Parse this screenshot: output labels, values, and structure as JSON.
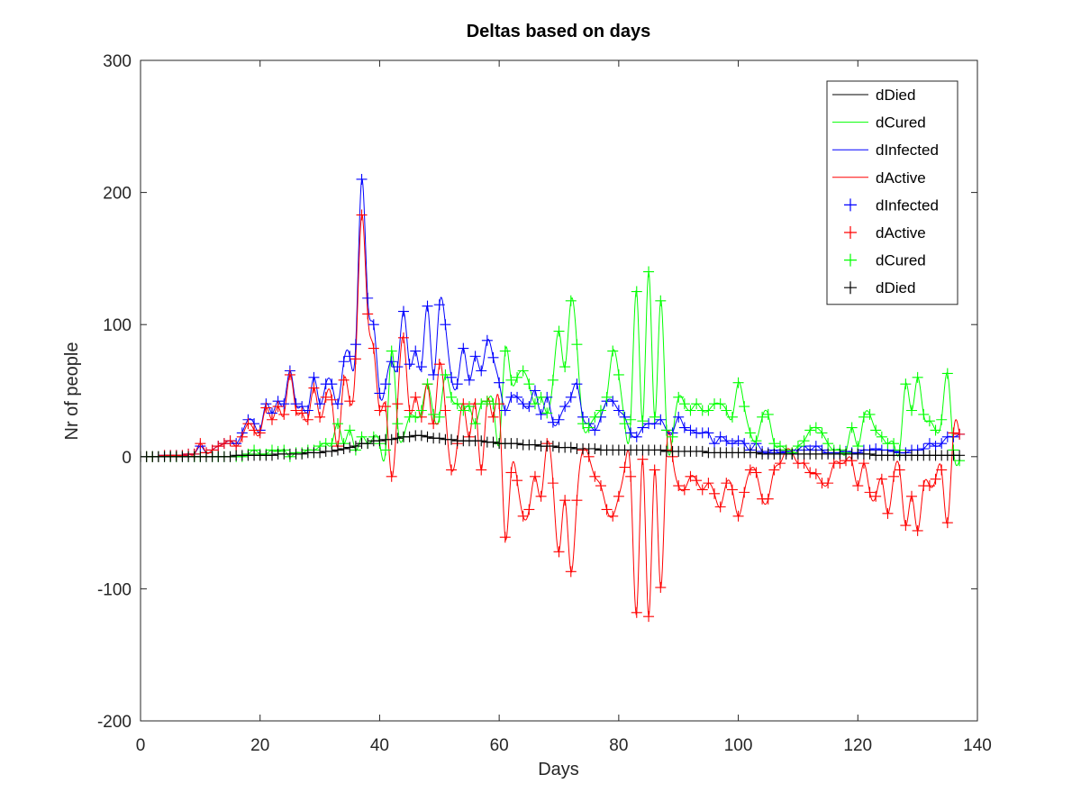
{
  "chart_data": {
    "type": "line",
    "title": "Deltas based on days",
    "xlabel": "Days",
    "ylabel": "Nr of people",
    "xlim": [
      0,
      140
    ],
    "ylim": [
      -200,
      300
    ],
    "xticks": [
      0,
      20,
      40,
      60,
      80,
      100,
      120,
      140
    ],
    "yticks": [
      -200,
      -100,
      0,
      100,
      200,
      300
    ],
    "grid": false,
    "legend_position": "top-right",
    "legend": [
      {
        "label": "dDied",
        "style": "line",
        "color": "#000000"
      },
      {
        "label": "dCured",
        "style": "line",
        "color": "#00ff00"
      },
      {
        "label": "dInfected",
        "style": "line",
        "color": "#0000ff"
      },
      {
        "label": "dActive",
        "style": "line",
        "color": "#ff0000"
      },
      {
        "label": "dInfected",
        "style": "marker",
        "color": "#0000ff"
      },
      {
        "label": "dActive",
        "style": "marker",
        "color": "#ff0000"
      },
      {
        "label": "dCured",
        "style": "marker",
        "color": "#00ff00"
      },
      {
        "label": "dDied",
        "style": "marker",
        "color": "#000000"
      }
    ],
    "x": [
      0,
      1,
      2,
      3,
      4,
      5,
      6,
      7,
      8,
      9,
      10,
      11,
      12,
      13,
      14,
      15,
      16,
      17,
      18,
      19,
      20,
      21,
      22,
      23,
      24,
      25,
      26,
      27,
      28,
      29,
      30,
      31,
      32,
      33,
      34,
      35,
      36,
      37,
      38,
      39,
      40,
      41,
      42,
      43,
      44,
      45,
      46,
      47,
      48,
      49,
      50,
      51,
      52,
      53,
      54,
      55,
      56,
      57,
      58,
      59,
      60,
      61,
      62,
      63,
      64,
      65,
      66,
      67,
      68,
      69,
      70,
      71,
      72,
      73,
      74,
      75,
      76,
      77,
      78,
      79,
      80,
      81,
      82,
      83,
      84,
      85,
      86,
      87,
      88,
      89,
      90,
      91,
      92,
      93,
      94,
      95,
      96,
      97,
      98,
      99,
      100,
      101,
      102,
      103,
      104,
      105,
      106,
      107,
      108,
      109,
      110,
      111,
      112,
      113,
      114,
      115,
      116,
      117,
      118,
      119,
      120,
      121,
      122,
      123,
      124,
      125,
      126,
      127,
      128,
      129,
      130,
      131,
      132,
      133,
      134,
      135,
      136,
      137
    ],
    "series": [
      {
        "name": "dInfected",
        "color": "#0000ff",
        "values": [
          0,
          0,
          0,
          0,
          1,
          1,
          1,
          1,
          2,
          2,
          8,
          3,
          5,
          8,
          10,
          12,
          10,
          18,
          28,
          25,
          20,
          40,
          33,
          42,
          40,
          65,
          40,
          38,
          35,
          60,
          40,
          55,
          55,
          40,
          72,
          76,
          85,
          210,
          120,
          100,
          48,
          55,
          72,
          68,
          110,
          70,
          80,
          68,
          114,
          62,
          115,
          100,
          60,
          55,
          82,
          58,
          76,
          65,
          88,
          75,
          56,
          35,
          45,
          45,
          40,
          38,
          50,
          32,
          45,
          26,
          28,
          38,
          45,
          55,
          30,
          25,
          20,
          30,
          42,
          42,
          35,
          30,
          18,
          15,
          22,
          25,
          25,
          28,
          20,
          18,
          30,
          22,
          20,
          18,
          18,
          18,
          10,
          15,
          12,
          10,
          12,
          10,
          5,
          10,
          4,
          3,
          5,
          3,
          4,
          2,
          5,
          8,
          5,
          8,
          5,
          3,
          3,
          3,
          4,
          3,
          3,
          5,
          5,
          6,
          5,
          5,
          4,
          3,
          3,
          5,
          5,
          6,
          10,
          8,
          10,
          15,
          15,
          17
        ]
      },
      {
        "name": "dActive",
        "color": "#ff0000",
        "values": [
          0,
          0,
          0,
          0,
          1,
          1,
          1,
          1,
          2,
          2,
          10,
          3,
          5,
          8,
          10,
          12,
          8,
          15,
          25,
          20,
          18,
          37,
          28,
          38,
          32,
          62,
          35,
          33,
          28,
          52,
          30,
          45,
          43,
          8,
          58,
          42,
          74,
          183,
          108,
          82,
          35,
          38,
          -15,
          40,
          90,
          35,
          45,
          30,
          55,
          25,
          70,
          35,
          -10,
          10,
          40,
          15,
          40,
          -10,
          42,
          30,
          40,
          -61,
          -12,
          -18,
          -45,
          -40,
          -15,
          -30,
          10,
          -20,
          -72,
          -33,
          -87,
          -33,
          5,
          0,
          -15,
          -22,
          -40,
          -45,
          -30,
          -8,
          -15,
          -118,
          -2,
          -121,
          -10,
          -99,
          5,
          0,
          -22,
          -25,
          -15,
          -18,
          -25,
          -20,
          -28,
          -38,
          -20,
          -25,
          -45,
          -27,
          -10,
          -12,
          -32,
          -32,
          -10,
          -5,
          5,
          3,
          -5,
          -5,
          -12,
          -13,
          -20,
          -20,
          -5,
          -5,
          -3,
          -3,
          -22,
          -5,
          -27,
          -30,
          -17,
          -43,
          -15,
          -10,
          -52,
          -30,
          -56,
          -22,
          -22,
          -17,
          -10,
          -50,
          18,
          17
        ]
      },
      {
        "name": "dCured",
        "color": "#00ff00",
        "values": [
          0,
          0,
          0,
          0,
          0,
          0,
          0,
          0,
          0,
          0,
          0,
          0,
          0,
          0,
          0,
          0,
          0,
          0,
          2,
          5,
          2,
          2,
          5,
          4,
          5,
          0,
          3,
          3,
          5,
          5,
          8,
          10,
          10,
          25,
          10,
          20,
          5,
          15,
          10,
          15,
          10,
          5,
          80,
          25,
          15,
          30,
          30,
          35,
          55,
          32,
          30,
          62,
          45,
          40,
          35,
          38,
          25,
          40,
          42,
          40,
          10,
          80,
          58,
          60,
          65,
          55,
          40,
          45,
          33,
          58,
          95,
          68,
          118,
          85,
          25,
          22,
          30,
          35,
          45,
          80,
          62,
          25,
          28,
          125,
          27,
          140,
          30,
          118,
          20,
          15,
          45,
          40,
          35,
          40,
          35,
          35,
          40,
          40,
          35,
          30,
          56,
          38,
          18,
          12,
          30,
          32,
          10,
          8,
          5,
          3,
          8,
          12,
          20,
          22,
          18,
          10,
          5,
          5,
          3,
          22,
          8,
          30,
          32,
          20,
          15,
          10,
          10,
          5,
          55,
          35,
          60,
          32,
          27,
          20,
          28,
          63,
          5,
          -3
        ]
      },
      {
        "name": "dDied",
        "color": "#000000",
        "values": [
          0,
          0,
          0,
          0,
          0,
          0,
          0,
          0,
          0,
          0,
          0,
          0,
          0,
          0,
          0,
          0,
          1,
          1,
          1,
          1,
          1,
          1,
          1,
          2,
          2,
          2,
          2,
          2,
          3,
          3,
          3,
          4,
          4,
          5,
          6,
          7,
          8,
          10,
          10,
          12,
          12,
          13,
          13,
          14,
          15,
          15,
          16,
          16,
          15,
          14,
          14,
          13,
          13,
          12,
          12,
          12,
          12,
          12,
          11,
          11,
          10,
          10,
          10,
          10,
          9,
          9,
          9,
          8,
          8,
          8,
          7,
          7,
          7,
          6,
          6,
          6,
          6,
          5,
          5,
          5,
          5,
          5,
          5,
          5,
          5,
          5,
          5,
          5,
          4,
          4,
          4,
          4,
          4,
          4,
          4,
          3,
          3,
          3,
          3,
          3,
          3,
          3,
          3,
          3,
          2,
          2,
          2,
          2,
          2,
          2,
          2,
          2,
          2,
          2,
          2,
          2,
          2,
          2,
          2,
          2,
          2,
          2,
          2,
          1,
          1,
          1,
          1,
          1,
          1,
          1,
          1,
          1,
          1,
          1,
          1,
          1,
          1,
          1
        ]
      }
    ]
  }
}
